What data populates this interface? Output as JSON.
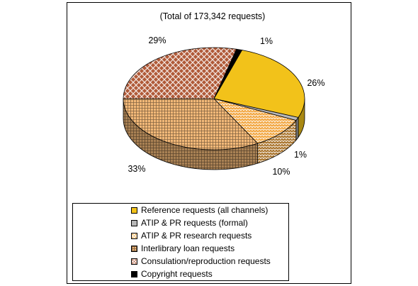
{
  "chart_data": {
    "type": "pie",
    "subtitle": "(Total of 173,342 requests)",
    "slices": [
      {
        "name": "Reference requests (all channels)",
        "percent": 26,
        "label": "26%",
        "color": "#f2c21a",
        "pattern": "solid"
      },
      {
        "name": "ATIP & PR requests (formal)",
        "percent": 1,
        "label": "",
        "color": "#b8b8b8",
        "pattern": "solid"
      },
      {
        "name": "ATIP & PR research requests",
        "percent": 10,
        "label": "10%",
        "color": "#f2a640",
        "pattern": "scales"
      },
      {
        "name": "Interlibrary loan requests",
        "percent": 33,
        "label": "33%",
        "color": "#f2b878",
        "pattern": "grid"
      },
      {
        "name": "Consulation/reproduction requests",
        "percent": 29,
        "label": "29%",
        "color": "#b05a38",
        "pattern": "checker"
      },
      {
        "name": "Copyright requests",
        "percent": 1,
        "label": "1%",
        "color": "#000000",
        "pattern": "solid"
      }
    ],
    "extra_labels": [
      "1%"
    ],
    "legend_position": "bottom"
  }
}
